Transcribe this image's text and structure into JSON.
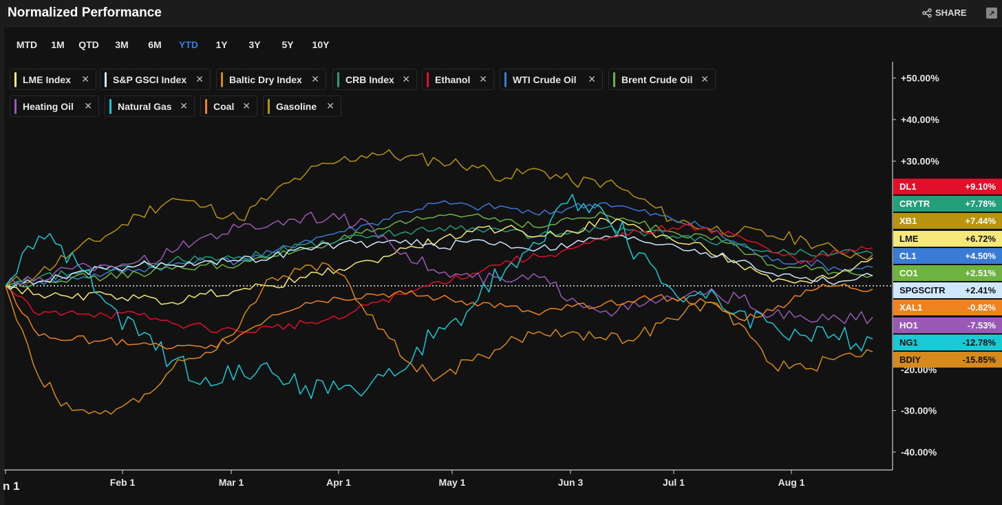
{
  "header": {
    "title": "Normalized Performance",
    "share_label": "SHARE"
  },
  "tabs": [
    {
      "label": "MTD",
      "active": false
    },
    {
      "label": "1M",
      "active": false
    },
    {
      "label": "QTD",
      "active": false
    },
    {
      "label": "3M",
      "active": false
    },
    {
      "label": "6M",
      "active": false
    },
    {
      "label": "YTD",
      "active": true
    },
    {
      "label": "1Y",
      "active": false
    },
    {
      "label": "3Y",
      "active": false
    },
    {
      "label": "5Y",
      "active": false
    },
    {
      "label": "10Y",
      "active": false
    }
  ],
  "legend_chips": [
    {
      "label": "LME Index",
      "color": "#f7e87a"
    },
    {
      "label": "S&P GSCI Index",
      "color": "#cfe8ff"
    },
    {
      "label": "Baltic Dry Index",
      "color": "#d68a1c"
    },
    {
      "label": "CRB Index",
      "color": "#21a07a"
    },
    {
      "label": "Ethanol",
      "color": "#e0102a"
    },
    {
      "label": "WTI Crude Oil",
      "color": "#3a7bd5"
    },
    {
      "label": "Brent Crude Oil",
      "color": "#6db33f"
    },
    {
      "label": "Heating Oil",
      "color": "#9b59b6"
    },
    {
      "label": "Natural Gas",
      "color": "#18c9d6"
    },
    {
      "label": "Coal",
      "color": "#f0831f"
    },
    {
      "label": "Gasoline",
      "color": "#b8930f"
    }
  ],
  "chart_data": {
    "type": "line",
    "title": "Normalized Performance",
    "ylim": [
      -45,
      55
    ],
    "x_tick_labels": [
      "n 1",
      "Feb 1",
      "Mar 1",
      "Apr 1",
      "May 1",
      "Jun 3",
      "Jul 1",
      "Aug 1"
    ],
    "y_tick_labels": [
      "+50.00%",
      "+40.00%",
      "+30.00%",
      "-30.00%",
      "-40.00%"
    ],
    "y_tick_values": [
      50,
      40,
      30,
      -30,
      -40
    ],
    "baseline": 0,
    "grid": false,
    "series": [
      {
        "name": "Gasoline",
        "color": "#b8930f",
        "values": [
          0,
          3,
          8,
          12,
          17,
          21,
          19,
          16,
          22,
          27,
          30,
          32,
          31,
          30,
          29,
          26,
          28,
          25,
          25,
          21,
          16,
          14,
          13,
          12,
          11,
          8,
          7.44
        ]
      },
      {
        "name": "WTI Crude Oil",
        "color": "#3a7bd5",
        "values": [
          0,
          1,
          2,
          3,
          4,
          5,
          6,
          6,
          8,
          11,
          13,
          15,
          18,
          20,
          19,
          19,
          17,
          19,
          20,
          18,
          16,
          14,
          10,
          6,
          6,
          4,
          4.5
        ]
      },
      {
        "name": "Brent Crude Oil",
        "color": "#6db33f",
        "values": [
          0,
          1,
          2,
          2,
          3,
          4,
          5,
          5,
          7,
          9,
          11,
          13,
          15,
          17,
          17,
          16,
          14,
          16,
          17,
          15,
          13,
          12,
          9,
          5,
          5,
          3,
          2.51
        ]
      },
      {
        "name": "CRB Index",
        "color": "#21a07a",
        "values": [
          0,
          2,
          3,
          4,
          5,
          6,
          7,
          7,
          8,
          10,
          11,
          12,
          13,
          14,
          14,
          13,
          12,
          13,
          14,
          13,
          12,
          11,
          10,
          8,
          8,
          8,
          7.78
        ]
      },
      {
        "name": "LME Index",
        "color": "#f7e87a",
        "values": [
          0,
          -2,
          -3,
          -2,
          -3,
          -4,
          -2,
          -1,
          0,
          2,
          4,
          6,
          9,
          11,
          13,
          14,
          12,
          13,
          16,
          14,
          11,
          9,
          5,
          1,
          1,
          3,
          6.72
        ]
      },
      {
        "name": "S&P GSCI Index",
        "color": "#cfe8ff",
        "values": [
          0,
          1,
          3,
          4,
          5,
          5,
          6,
          6,
          7,
          9,
          10,
          10,
          11,
          9,
          11,
          10,
          9,
          10,
          12,
          11,
          10,
          8,
          6,
          3,
          2,
          1,
          2.41
        ]
      },
      {
        "name": "Ethanol",
        "color": "#e0102a",
        "values": [
          0,
          -7,
          -6,
          -7,
          -7,
          -9,
          -10,
          -11,
          -10,
          -9,
          -8,
          -4,
          -2,
          1,
          3,
          6,
          7,
          9,
          11,
          13,
          14,
          14,
          12,
          8,
          6,
          8,
          9.1
        ]
      },
      {
        "name": "Heating Oil",
        "color": "#9b59b6",
        "values": [
          0,
          2,
          4,
          5,
          6,
          8,
          12,
          14,
          15,
          17,
          16,
          14,
          8,
          3,
          2,
          1,
          2,
          -3,
          -6,
          -5,
          -3,
          -2,
          -3,
          -7,
          -8,
          -8,
          -7.53
        ]
      },
      {
        "name": "Natural Gas",
        "color": "#18c9d6",
        "values": [
          0,
          12,
          8,
          -4,
          -12,
          -18,
          -22,
          -19,
          -21,
          -24,
          -25,
          -23,
          -20,
          -10,
          -5,
          4,
          10,
          22,
          17,
          8,
          -1,
          -3,
          -6,
          -9,
          -12,
          -13,
          -12.78
        ]
      },
      {
        "name": "Coal",
        "color": "#f0831f",
        "values": [
          0,
          -12,
          -13,
          -13,
          -14,
          -15,
          -15,
          -12,
          -7,
          -4,
          -3,
          -2,
          -2,
          -3,
          -4,
          -5,
          -7,
          -5,
          -4,
          -3,
          -3,
          -4,
          -8,
          -6,
          -1,
          0,
          -0.82
        ]
      },
      {
        "name": "Baltic Dry Index",
        "color": "#d68a1c",
        "values": [
          0,
          -22,
          -30,
          -30,
          -28,
          -20,
          -16,
          -10,
          2,
          5,
          3,
          -7,
          -18,
          -22,
          -18,
          -14,
          -11,
          -11,
          -13,
          -12,
          -8,
          -4,
          -9,
          -19,
          -20,
          -17,
          -15.85
        ]
      }
    ]
  },
  "value_tags": [
    {
      "ticker": "DL1",
      "value": "+9.10%",
      "bg": "#e0102a",
      "fg": "#ffffff"
    },
    {
      "ticker": "CRYTR",
      "value": "+7.78%",
      "bg": "#21a07a",
      "fg": "#ffffff"
    },
    {
      "ticker": "XB1",
      "value": "+7.44%",
      "bg": "#b8930f",
      "fg": "#ffffff"
    },
    {
      "ticker": "LME",
      "value": "+6.72%",
      "bg": "#f7e87a",
      "fg": "#111111"
    },
    {
      "ticker": "CL1",
      "value": "+4.50%",
      "bg": "#3a7bd5",
      "fg": "#ffffff"
    },
    {
      "ticker": "CO1",
      "value": "+2.51%",
      "bg": "#6db33f",
      "fg": "#ffffff"
    },
    {
      "ticker": "SPGSCITR",
      "value": "+2.41%",
      "bg": "#cfe8ff",
      "fg": "#111111"
    },
    {
      "ticker": "XAL1",
      "value": "-0.82%",
      "bg": "#f0831f",
      "fg": "#ffffff"
    },
    {
      "ticker": "HO1",
      "value": "-7.53%",
      "bg": "#9b59b6",
      "fg": "#ffffff"
    },
    {
      "ticker": "NG1",
      "value": "-12.78%",
      "bg": "#18c9d6",
      "fg": "#111111"
    },
    {
      "ticker": "BDIY",
      "value": "-15.85%",
      "bg": "#d68a1c",
      "fg": "#111111"
    }
  ],
  "partial_tick": "-20.00%"
}
